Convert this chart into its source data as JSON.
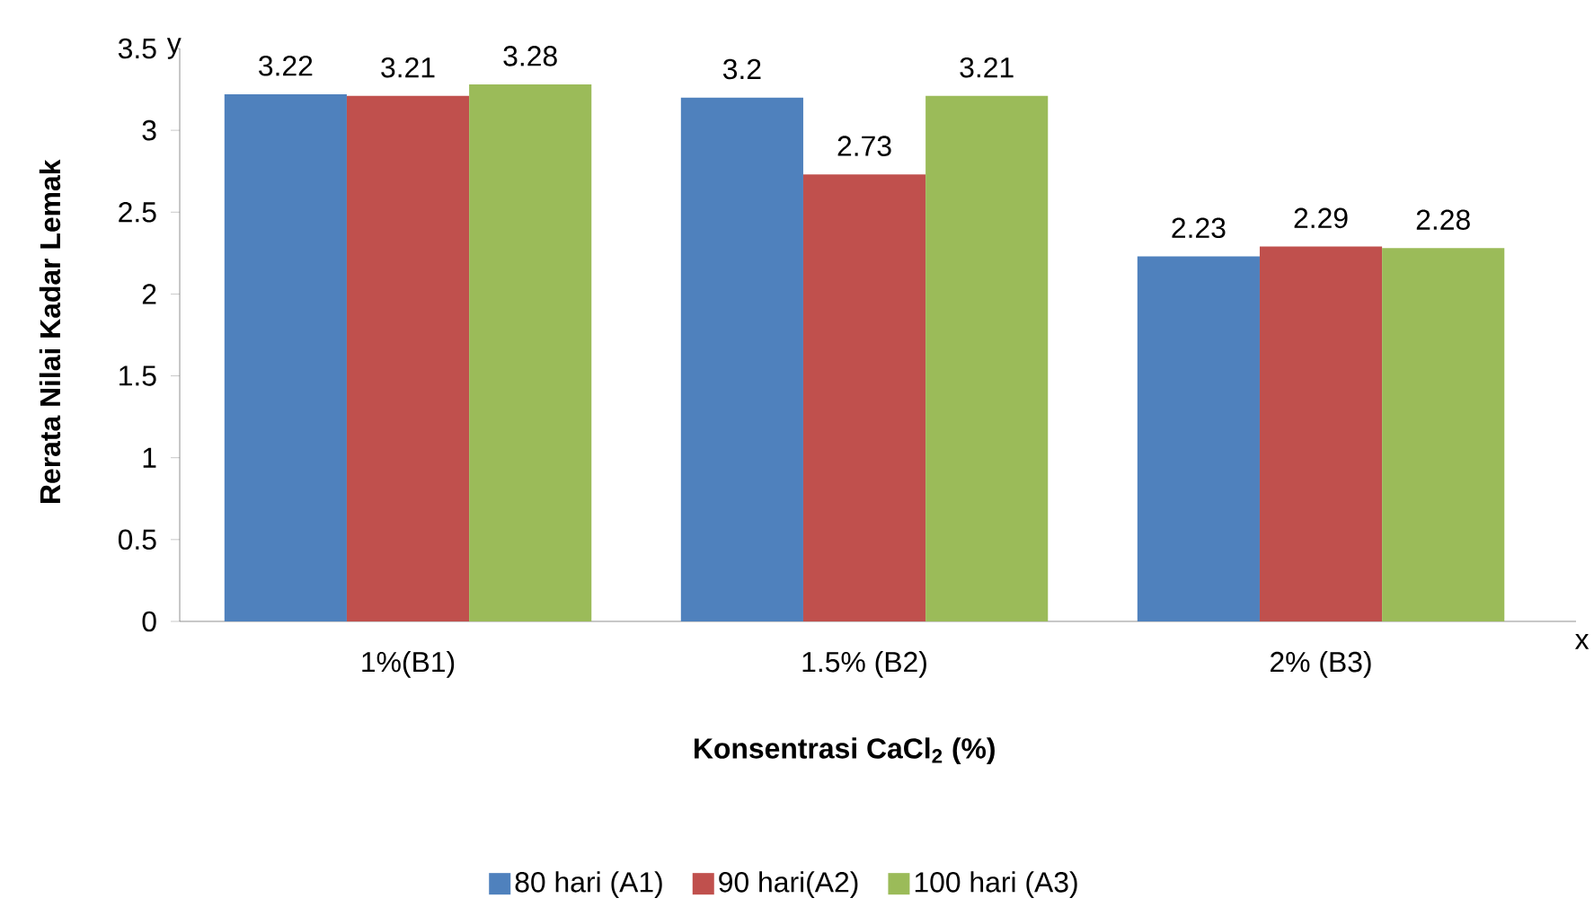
{
  "chart_data": {
    "type": "bar",
    "xlabel": "Konsentrasi CaCl$_{2}$ (%)",
    "ylabel": "Rerata Nilai Kadar Lemak",
    "annotations": [
      "y",
      "x"
    ],
    "categories": [
      "1%(B1)",
      "1.5% (B2)",
      "2% (B3)"
    ],
    "series": [
      {
        "name": "80 hari (A1)",
        "color": "#4f81bd",
        "values": [
          3.22,
          3.2,
          2.23
        ]
      },
      {
        "name": "90 hari(A2)",
        "color": "#c0504d",
        "values": [
          3.21,
          2.73,
          2.29
        ]
      },
      {
        "name": "100 hari (A3)",
        "color": "#9bbb59",
        "values": [
          3.28,
          3.21,
          2.28
        ]
      }
    ],
    "ylim": [
      0,
      3.5
    ],
    "yticks": [
      0,
      0.5,
      1,
      1.5,
      2,
      2.5,
      3,
      3.5
    ],
    "data_labels": true,
    "legend": "bottom",
    "grid": false
  }
}
